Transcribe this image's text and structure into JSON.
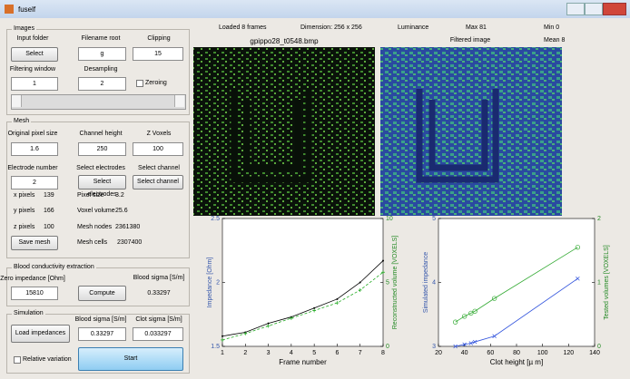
{
  "window": {
    "title": "fuself"
  },
  "images_panel": {
    "title": "Images",
    "input_folder_label": "Input folder",
    "filename_root_label": "Filename root",
    "clipping_label": "Clipping",
    "select_button": "Select",
    "filename_root": "g",
    "clipping": "15",
    "filtering_window_label": "Filtering window",
    "desampling_label": "Desampling",
    "filtering_window": "1",
    "desampling": "2",
    "zeroing_label": "Zeroing"
  },
  "mesh_panel": {
    "title": "Mesh",
    "original_pixel_size_label": "Original pixel size",
    "channel_height_label": "Channel height",
    "z_voxels_label": "Z Voxels",
    "original_pixel_size": "1.6",
    "channel_height": "250",
    "z_voxels": "100",
    "electrode_number_label": "Electrode number",
    "select_electrodes_label": "Select electrodes",
    "select_channel_label": "Select channel",
    "electrode_number": "2",
    "select_electrodes_button": "Select electrodes",
    "select_channel_button": "Select channel",
    "info": [
      [
        "x pixels",
        "139",
        "Pixel size",
        "3.2"
      ],
      [
        "y pixels",
        "166",
        "Voxel volume",
        "25.6"
      ],
      [
        "z pixels",
        "100",
        "Mesh nodes",
        "2361380"
      ]
    ],
    "save_mesh_button": "Save mesh",
    "mesh_cells_label": "Mesh cells",
    "mesh_cells": "2307400"
  },
  "blood_panel": {
    "title": "Blood conductivity extraction",
    "zero_impedance_label": "Zero impedance [Ohm]",
    "blood_sigma_label": "Blood sigma [S/m]",
    "zero_impedance": "15810",
    "compute_button": "Compute",
    "blood_sigma": "0.33297"
  },
  "simulation_panel": {
    "title": "Simulation",
    "blood_sigma_label": "Blood sigma [S/m]",
    "clot_sigma_label": "Clot sigma [S/m]",
    "load_button": "Load impedances",
    "blood_sigma": "0.33297",
    "clot_sigma": "0.033297",
    "relative_variation_label": "Relative variation",
    "start_button": "Start"
  },
  "info_bar": {
    "loaded": "Loaded 8 frames",
    "dimension": "Dimension: 256 x 256",
    "luminance": "Luminance",
    "max": "Max 81",
    "min": "Min 0",
    "file_name": "gpippo28_t0548.bmp",
    "filtered_label": "Filtered image",
    "mean": "Mean 8"
  },
  "chart_data": [
    {
      "type": "line",
      "xlabel": "Frame number",
      "ylabel": "Impedance [Ohm]",
      "y2label": "Reconstructed volume [VOXELS]",
      "x": [
        1,
        2,
        3,
        4,
        5,
        6,
        7,
        8
      ],
      "xlim": [
        1,
        8
      ],
      "xticks": [
        1,
        2,
        3,
        4,
        5,
        6,
        7,
        8
      ],
      "ylim": [
        1.5,
        2.5
      ],
      "yticks": [
        1.5,
        2,
        2.5
      ],
      "y2lim": [
        0,
        10
      ],
      "y2ticks": [
        0,
        5,
        10
      ],
      "series": [
        {
          "color": "#000000",
          "values": [
            1.58,
            1.61,
            1.68,
            1.73,
            1.8,
            1.87,
            2.0,
            2.17
          ],
          "marker": "dot",
          "dash": false
        },
        {
          "color": "#22aa22",
          "axis": "y2",
          "values": [
            0.5,
            1.0,
            1.6,
            2.2,
            2.8,
            3.4,
            4.4,
            5.8
          ],
          "marker": "plus",
          "dash": true
        }
      ]
    },
    {
      "type": "line",
      "xlabel": "Clot height [µ m]",
      "ylabel": "Simulated impedance",
      "y2label": "Tested volumes [VOXELS]",
      "x": [
        33,
        40,
        45,
        48,
        63,
        127
      ],
      "xlim": [
        20,
        140
      ],
      "xticks": [
        20,
        40,
        60,
        80,
        100,
        120,
        140
      ],
      "ylim": [
        3,
        5
      ],
      "yticks": [
        3,
        4,
        5
      ],
      "y2lim": [
        0,
        2
      ],
      "y2ticks": [
        0,
        1,
        2
      ],
      "series": [
        {
          "color": "#3355dd",
          "values": [
            3.0,
            3.03,
            3.05,
            3.07,
            3.16,
            4.06
          ],
          "marker": "x",
          "dash": false
        },
        {
          "color": "#33aa33",
          "axis": "y2",
          "values": [
            0.38,
            0.47,
            0.52,
            0.55,
            0.75,
            1.55
          ],
          "marker": "circle",
          "dash": false
        }
      ]
    }
  ]
}
